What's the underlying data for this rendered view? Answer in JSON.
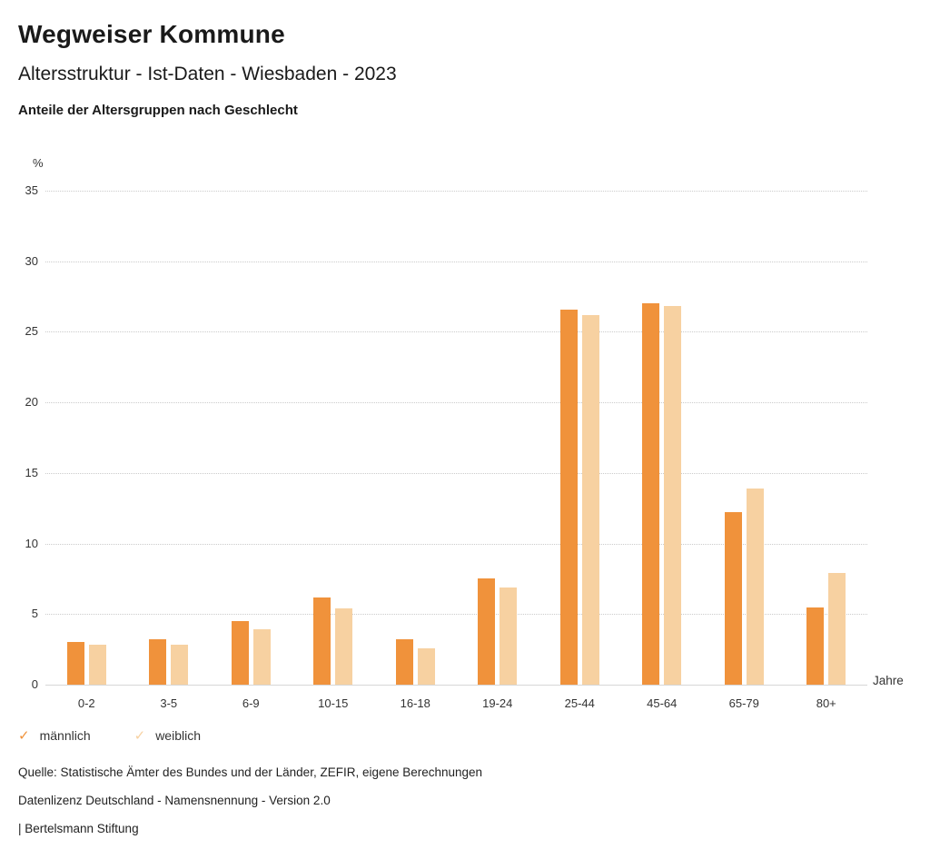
{
  "header": {
    "title": "Wegweiser Kommune",
    "subtitle": "Altersstruktur - Ist-Daten - Wiesbaden - 2023",
    "chart_title": "Anteile der Altersgruppen nach Geschlecht"
  },
  "chart_data": {
    "type": "bar",
    "categories": [
      "0-2",
      "3-5",
      "6-9",
      "10-15",
      "16-18",
      "19-24",
      "25-44",
      "45-64",
      "65-79",
      "80+"
    ],
    "series": [
      {
        "name": "männlich",
        "color": "#F0923B",
        "values": [
          3.0,
          3.2,
          4.5,
          6.2,
          3.2,
          7.5,
          26.6,
          27.0,
          12.2,
          5.5
        ]
      },
      {
        "name": "weiblich",
        "color": "#F7D1A1",
        "values": [
          2.8,
          2.8,
          3.9,
          5.4,
          2.6,
          6.9,
          26.2,
          26.8,
          13.9,
          7.9
        ]
      }
    ],
    "ylabel": "%",
    "xlabel": "Jahre",
    "yticks": [
      0,
      5,
      10,
      15,
      20,
      25,
      30,
      35
    ],
    "ylim": [
      0,
      35
    ],
    "grid": "dotted-horizontal",
    "legend_position": "bottom-left"
  },
  "legend": {
    "check_icon": "✓"
  },
  "footer": {
    "source": "Quelle: Statistische Ämter des Bundes und der Länder, ZEFIR, eigene Berechnungen",
    "license": "Datenlizenz Deutschland - Namensnennung - Version 2.0",
    "attribution": "| Bertelsmann Stiftung"
  }
}
